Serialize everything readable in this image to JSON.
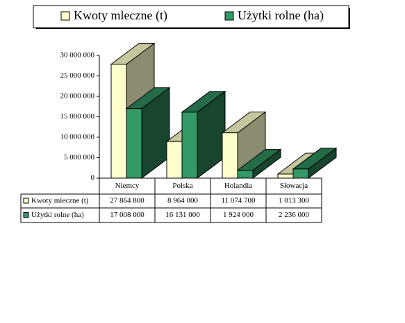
{
  "chart_data": {
    "type": "bar3d",
    "categories": [
      "Niemcy",
      "Polska",
      "Holandia",
      "Słowacja"
    ],
    "series": [
      {
        "name": "Kwoty mleczne (t)",
        "color": "#ffffcc",
        "values": [
          27864800,
          8964000,
          11074700,
          1013300
        ],
        "value_labels": [
          "27 864 800",
          "8 964 000",
          "11 074 700",
          "1 013 300"
        ]
      },
      {
        "name": "Użytki rolne (ha)",
        "color": "#339966",
        "values": [
          17008000,
          16131000,
          1924000,
          2236000
        ],
        "value_labels": [
          "17 008 000",
          "16 131 000",
          "1 924 000",
          "2 236 000"
        ]
      }
    ],
    "ylim": [
      0,
      30000000
    ],
    "yticks": [
      0,
      {
        "value": 5000000,
        "label": "5 000 000"
      },
      {
        "value": 10000000,
        "label": "10 000 000"
      },
      {
        "value": 15000000,
        "label": "15 000 000"
      },
      {
        "value": 20000000,
        "label": "20 000 000"
      },
      {
        "value": 25000000,
        "label": "25 000 000"
      },
      {
        "value": 30000000,
        "label": "30 000 000"
      }
    ],
    "grid": false,
    "legend": "top"
  }
}
